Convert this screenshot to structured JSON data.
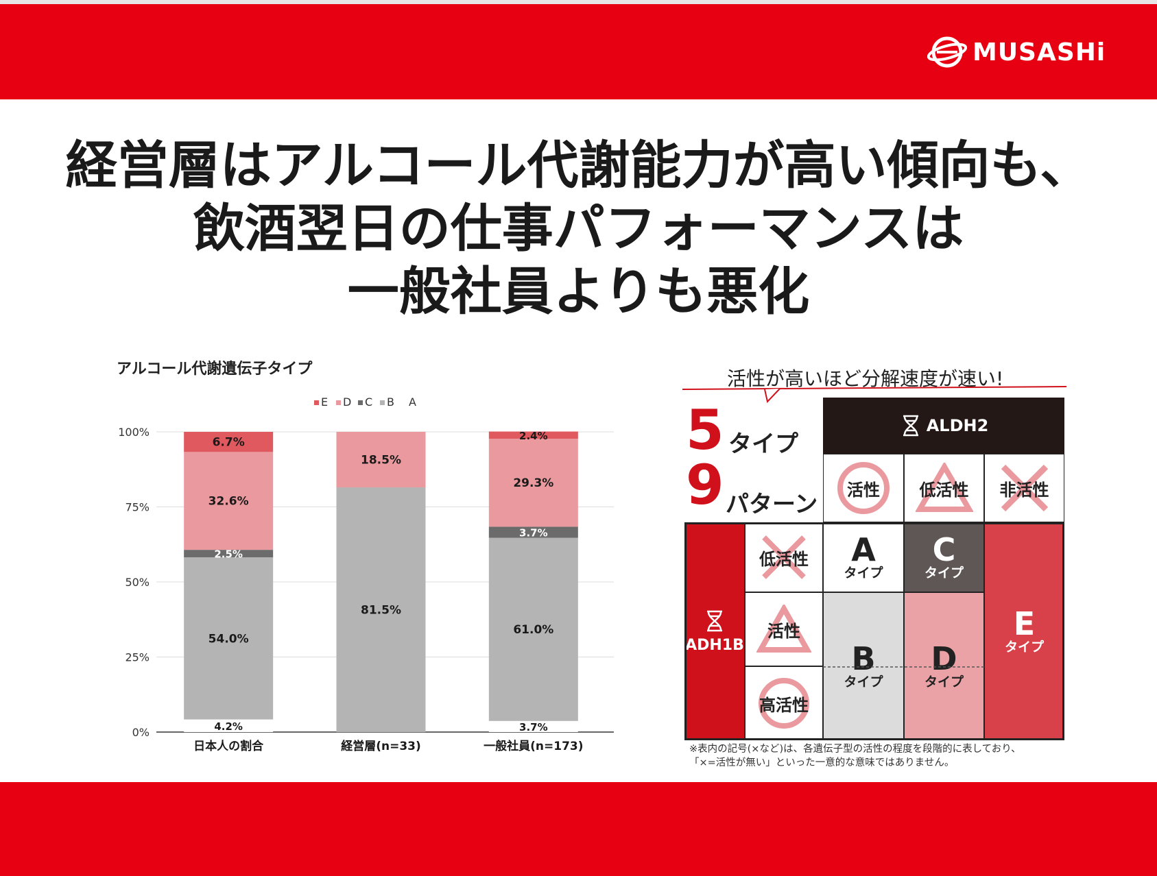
{
  "brand": {
    "logo_text": "MUSASHi"
  },
  "headline": [
    "経営層はアルコール代謝能力が高い傾向も、",
    "飲酒翌日の仕事パフォーマンスは",
    "一般社員よりも悪化"
  ],
  "chart_data": {
    "type": "bar",
    "stacked": true,
    "title": "アルコール代謝遺伝子タイプ",
    "legend": [
      "E",
      "D",
      "C",
      "B",
      "A"
    ],
    "legend_position": "top",
    "categories": [
      "日本人の割合",
      "経営層(n=33)",
      "一般社員(n=173)"
    ],
    "series": [
      {
        "name": "A",
        "values": [
          4.2,
          0,
          3.7
        ],
        "labels": [
          "4.2%",
          "",
          "3.7%"
        ],
        "color": "#ffffff"
      },
      {
        "name": "B",
        "values": [
          54.0,
          81.5,
          61.0
        ],
        "labels": [
          "54.0%",
          "81.5%",
          "61.0%"
        ],
        "color": "#b4b4b4"
      },
      {
        "name": "C",
        "values": [
          2.5,
          0,
          3.7
        ],
        "labels": [
          "2.5%",
          "",
          "3.7%"
        ],
        "color": "#6b6b6b"
      },
      {
        "name": "D",
        "values": [
          32.6,
          18.5,
          29.3
        ],
        "labels": [
          "32.6%",
          "18.5%",
          "29.3%"
        ],
        "color": "#ea9a9e"
      },
      {
        "name": "E",
        "values": [
          6.7,
          0,
          2.4
        ],
        "labels": [
          "6.7%",
          "",
          "2.4%"
        ],
        "color": "#e0595f"
      }
    ],
    "yticks": [
      "0%",
      "25%",
      "50%",
      "75%",
      "100%"
    ],
    "ylim": [
      0,
      100
    ],
    "grid": true
  },
  "diagram": {
    "speech": "活性が高いほど分解速度が速い!",
    "count1_num": "5",
    "count1_label": "タイプ",
    "count2_num": "9",
    "count2_label": "パターン",
    "aldh2": "ALDH2",
    "adh1b": "ADH1B",
    "aldh_cols": [
      "活性",
      "低活性",
      "非活性"
    ],
    "adh_rows": [
      "低活性",
      "活性",
      "高活性"
    ],
    "types": {
      "A": {
        "letter": "A",
        "sub": "タイプ"
      },
      "B": {
        "letter": "B",
        "sub": "タイプ"
      },
      "C": {
        "letter": "C",
        "sub": "タイプ"
      },
      "D": {
        "letter": "D",
        "sub": "タイプ"
      },
      "E": {
        "letter": "E",
        "sub": "タイプ"
      }
    },
    "note_line1": "※表内の記号(×など)は、各遺伝子型の活性の程度を段階的に表しており、",
    "note_line2": "「×=活性が無い」といった一意的な意味ではありません。"
  }
}
